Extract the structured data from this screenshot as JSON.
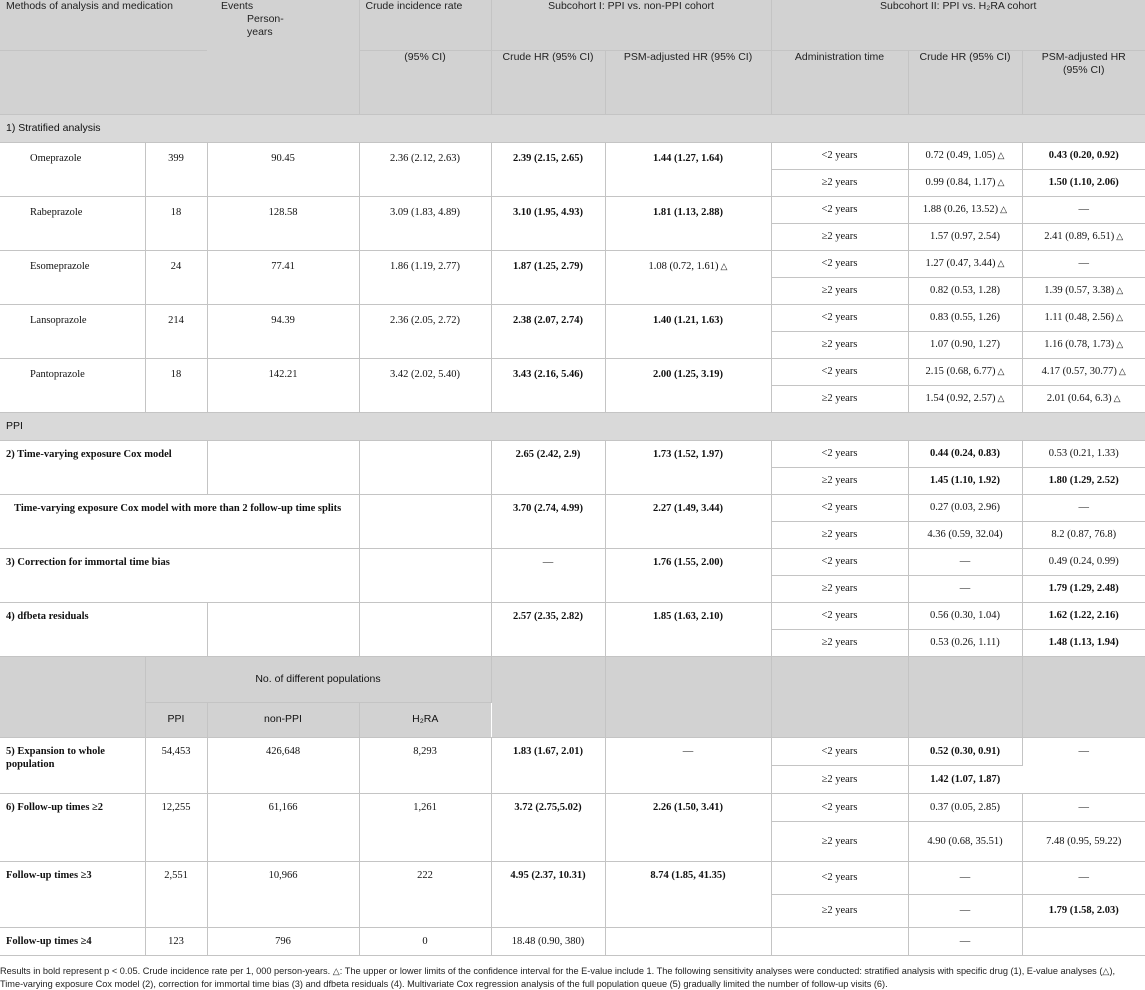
{
  "header": {
    "col1": "Methods of analysis and medication",
    "col2": "Events",
    "col3": "Person-years",
    "col4": "Crude incidence rate",
    "col4_sub": "(95% CI)",
    "sub1": "Subcohort I: PPI vs. non-PPI cohort",
    "sub1_crude": "Crude HR (95% CI)",
    "sub1_psm": "PSM-adjusted HR (95% CI)",
    "sub2": "Subcohort II: PPI vs. H₂RA cohort",
    "sub2_admin": "Administration time",
    "sub2_crude": "Crude HR (95% CI)",
    "sub2_psm": "PSM-adjusted HR (95% CI)"
  },
  "sections": {
    "stratified": "1) Stratified analysis",
    "ppi": "PPI"
  },
  "drugs": [
    {
      "name": "Omeprazole",
      "events": "399",
      "py": "90.45",
      "cir": "2.36 (2.12, 2.63)",
      "crude": "2.39 (2.15, 2.65)",
      "psm": "1.44 (1.27, 1.64)",
      "r1": {
        "time": "<2 years",
        "crude": "0.72 (0.49, 1.05)",
        "psm": "0.43 (0.20, 0.92)"
      },
      "r2": {
        "time": "≥2 years",
        "crude": "0.99 (0.84, 1.17)",
        "psm": "1.50 (1.10, 2.06)"
      }
    },
    {
      "name": "Rabeprazole",
      "events": "18",
      "py": "128.58",
      "cir": "3.09 (1.83, 4.89)",
      "crude": "3.10 (1.95, 4.93)",
      "psm": "1.81 (1.13, 2.88)",
      "r1": {
        "time": "<2 years",
        "crude": "1.88 (0.26, 13.52)",
        "psm": "—"
      },
      "r2": {
        "time": "≥2 years",
        "crude": "1.57 (0.97, 2.54)",
        "psm": "2.41 (0.89, 6.51)"
      }
    },
    {
      "name": "Esomeprazole",
      "events": "24",
      "py": "77.41",
      "cir": "1.86 (1.19, 2.77)",
      "crude": "1.87 (1.25, 2.79)",
      "psm": "1.08 (0.72, 1.61)",
      "r1": {
        "time": "<2 years",
        "crude": "1.27 (0.47, 3.44)",
        "psm": "—"
      },
      "r2": {
        "time": "≥2 years",
        "crude": "0.82 (0.53, 1.28)",
        "psm": "1.39 (0.57, 3.38)"
      }
    },
    {
      "name": "Lansoprazole",
      "events": "214",
      "py": "94.39",
      "cir": "2.36 (2.05, 2.72)",
      "crude": "2.38 (2.07, 2.74)",
      "psm": "1.40 (1.21, 1.63)",
      "r1": {
        "time": "<2 years",
        "crude": "0.83 (0.55, 1.26)",
        "psm": "1.11 (0.48, 2.56)"
      },
      "r2": {
        "time": "≥2 years",
        "crude": "1.07 (0.90, 1.27)",
        "psm": "1.16 (0.78, 1.73)"
      }
    },
    {
      "name": "Pantoprazole",
      "events": "18",
      "py": "142.21",
      "cir": "3.42 (2.02, 5.40)",
      "crude": "3.43 (2.16, 5.46)",
      "psm": "2.00 (1.25, 3.19)",
      "r1": {
        "time": "<2 years",
        "crude": "2.15 (0.68, 6.77)",
        "psm": "4.17 (0.57, 30.77)"
      },
      "r2": {
        "time": "≥2 years",
        "crude": "1.54 (0.92, 2.57)",
        "psm": "2.01 (0.64, 6.3)"
      }
    }
  ],
  "tri": "△",
  "methods": [
    {
      "name": "2) Time-varying exposure Cox model",
      "crude": "2.65 (2.42, 2.9)",
      "psm": "1.73 (1.52, 1.97)",
      "r1": {
        "time": "<2 years",
        "crude": "0.44 (0.24, 0.83)",
        "psm": "0.53 (0.21, 1.33)"
      },
      "r2": {
        "time": "≥2 years",
        "crude": "1.45 (1.10, 1.92)",
        "psm": "1.80 (1.29, 2.52)"
      }
    },
    {
      "name": "Time-varying exposure Cox model with more than 2 follow-up time splits",
      "crude": "3.70 (2.74, 4.99)",
      "psm": "2.27 (1.49, 3.44)",
      "r1": {
        "time": "<2 years",
        "crude": "0.27 (0.03, 2.96)",
        "psm": "—"
      },
      "r2": {
        "time": "≥2 years",
        "crude": "4.36 (0.59, 32.04)",
        "psm": "8.2 (0.87, 76.8)"
      }
    },
    {
      "name": "3) Correction for immortal time bias",
      "crude": "—",
      "psm": "1.76 (1.55, 2.00)",
      "r1": {
        "time": "<2 years",
        "crude": "—",
        "psm": "0.49 (0.24, 0.99)"
      },
      "r2": {
        "time": "≥2 years",
        "crude": "—",
        "psm": "1.79 (1.29, 2.48)"
      }
    },
    {
      "name": "4) dfbeta residuals",
      "crude": "2.57 (2.35, 2.82)",
      "psm": "1.85 (1.63, 2.10)",
      "r1": {
        "time": "<2 years",
        "crude": "0.56 (0.30, 1.04)",
        "psm": "1.62 (1.22, 2.16)"
      },
      "r2": {
        "time": "≥2 years",
        "crude": "0.53 (0.26, 1.11)",
        "psm": "1.48 (1.13, 1.94)"
      }
    }
  ],
  "populations": {
    "title": "No. of different populations",
    "ppi": "PPI",
    "nonppi": "non-PPI",
    "h2ra": "H₂RA",
    "rows": [
      {
        "name": "5) Expansion to whole population",
        "ppi": "54,453",
        "nonppi": "426,648",
        "h2ra": "8,293",
        "crude": "1.83 (1.67, 2.01)",
        "psm": "—",
        "r1": {
          "time": "<2 years",
          "crude": "0.52 (0.30, 0.91)",
          "psm": "—"
        },
        "r2": {
          "time": "≥2 years",
          "crude": "1.42 (1.07, 1.87)",
          "psm": ""
        }
      },
      {
        "name": "6) Follow-up times ≥2",
        "ppi": "12,255",
        "nonppi": "61,166",
        "h2ra": "1,261",
        "crude": "3.72 (2.75,5.02)",
        "psm": "2.26 (1.50, 3.41)",
        "r1": {
          "time": "<2 years",
          "crude": "0.37 (0.05, 2.85)",
          "psm": "—"
        },
        "r2": {
          "time": "≥2 years",
          "crude": "4.90 (0.68, 35.51)",
          "psm": "7.48 (0.95, 59.22)"
        }
      },
      {
        "name": "Follow-up times ≥3",
        "ppi": "2,551",
        "nonppi": "10,966",
        "h2ra": "222",
        "crude": "4.95 (2.37, 10.31)",
        "psm": "8.74 (1.85, 41.35)",
        "r1": {
          "time": "<2 years",
          "crude": "—",
          "psm": "—"
        },
        "r2": {
          "time": "≥2 years",
          "crude": "—",
          "psm": "1.79 (1.58, 2.03)"
        }
      },
      {
        "name": "Follow-up times ≥4",
        "ppi": "123",
        "nonppi": "796",
        "h2ra": "0",
        "crude": "18.48 (0.90, 380)",
        "psm": "",
        "time": "",
        "c2": "—",
        "p2": ""
      }
    ]
  },
  "footnote": "Results in bold represent p < 0.05. Crude incidence rate per 1, 000 person-years. △: The upper or lower limits of the confidence interval for the E-value include 1. The following sensitivity analyses were conducted: stratified analysis with specific drug (1), E-value analyses (△), Time-varying exposure Cox model (2), correction for immortal time bias (3) and dfbeta residuals (4). Multivariate Cox regression analysis of the full population queue (5) gradually limited the number of follow-up visits (6)."
}
